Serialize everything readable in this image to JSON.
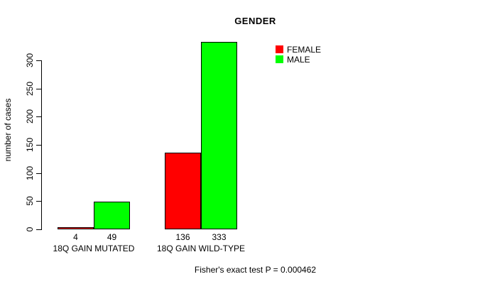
{
  "chart_data": {
    "type": "bar",
    "title": "GENDER",
    "ylabel": "number of cases",
    "xlabel": "",
    "categories": [
      "18Q GAIN MUTATED",
      "18Q GAIN WILD-TYPE"
    ],
    "series": [
      {
        "name": "FEMALE",
        "color": "#ff0000",
        "values": [
          4,
          136
        ]
      },
      {
        "name": "MALE",
        "color": "#00ff00",
        "values": [
          49,
          333
        ]
      }
    ],
    "yticks": [
      0,
      50,
      100,
      150,
      200,
      250,
      300
    ],
    "ylim": [
      0,
      333
    ],
    "bar_value_labels_shown": true,
    "legend": {
      "position": "top-right-inside",
      "box": false
    },
    "grid": false,
    "footnote": "Fisher's exact test P = 0.000462"
  }
}
